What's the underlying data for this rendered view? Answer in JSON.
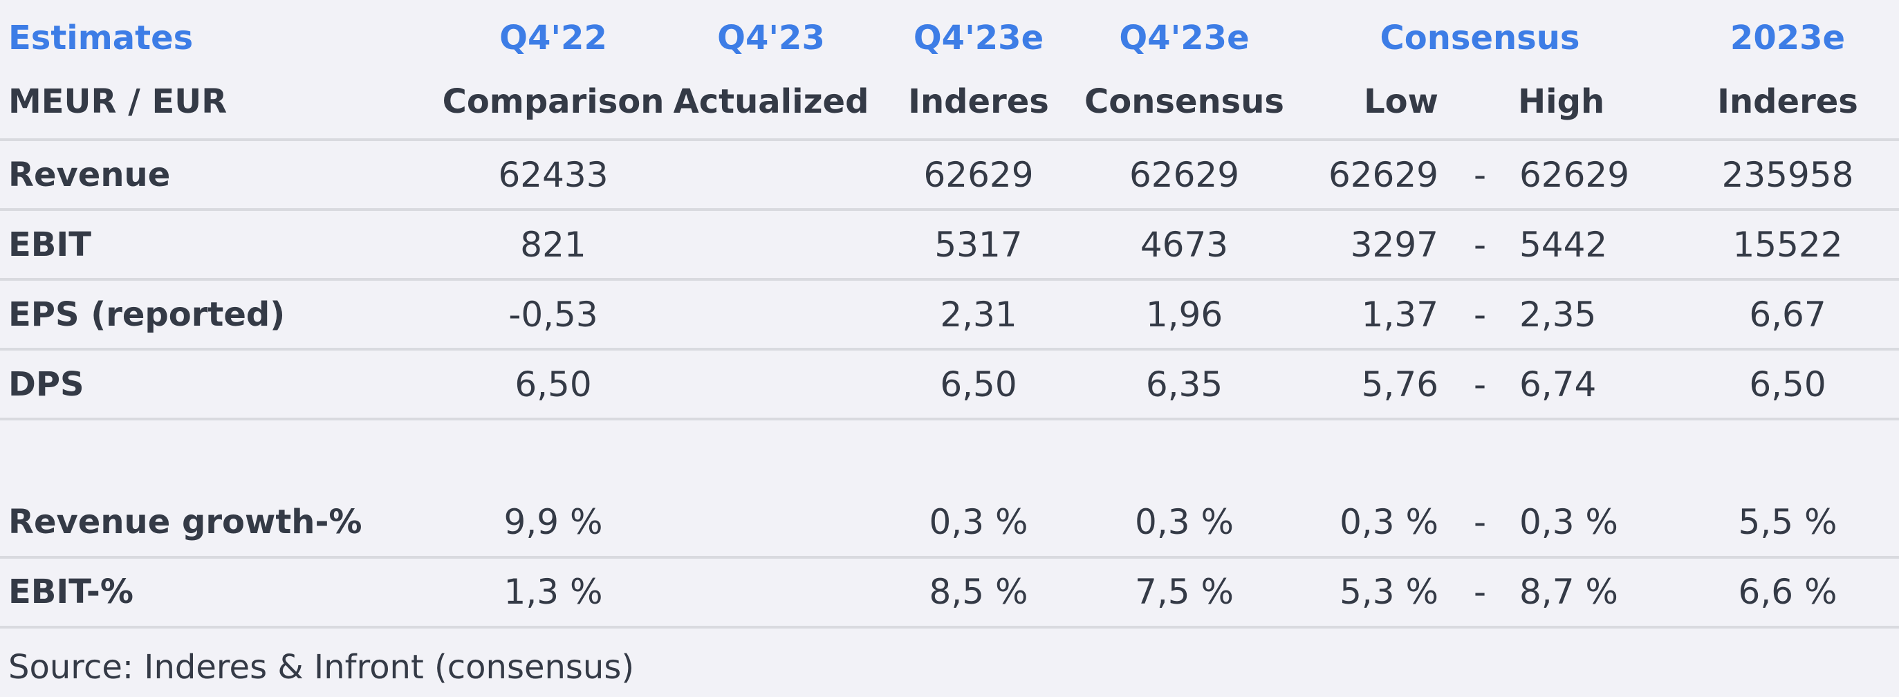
{
  "header": {
    "top": [
      "Estimates",
      "Q4'22",
      "Q4'23",
      "Q4'23e",
      "Q4'23e",
      "Consensus",
      "2023e"
    ],
    "bottom": [
      "MEUR / EUR",
      "Comparison",
      "Actualized",
      "Inderes",
      "Consensus",
      "Low",
      "High",
      "Inderes"
    ]
  },
  "rows": [
    {
      "label": "Revenue",
      "comparison": "62433",
      "actualized": "",
      "inderes": "62629",
      "consensus": "62629",
      "low": "62629",
      "dash": "-",
      "high": "62629",
      "year_inderes": "235958"
    },
    {
      "label": "EBIT",
      "comparison": "821",
      "actualized": "",
      "inderes": "5317",
      "consensus": "4673",
      "low": "3297",
      "dash": "-",
      "high": "5442",
      "year_inderes": "15522"
    },
    {
      "label": "EPS (reported)",
      "comparison": "-0,53",
      "actualized": "",
      "inderes": "2,31",
      "consensus": "1,96",
      "low": "1,37",
      "dash": "-",
      "high": "2,35",
      "year_inderes": "6,67"
    },
    {
      "label": "DPS",
      "comparison": "6,50",
      "actualized": "",
      "inderes": "6,50",
      "consensus": "6,35",
      "low": "5,76",
      "dash": "-",
      "high": "6,74",
      "year_inderes": "6,50"
    }
  ],
  "growth_rows": [
    {
      "label": "Revenue growth-%",
      "comparison": "9,9 %",
      "actualized": "",
      "inderes": "0,3 %",
      "consensus": "0,3 %",
      "low": "0,3 %",
      "dash": "-",
      "high": "0,3 %",
      "year_inderes": "5,5 %"
    },
    {
      "label": "EBIT-%",
      "comparison": "1,3 %",
      "actualized": "",
      "inderes": "8,5 %",
      "consensus": "7,5 %",
      "low": "5,3 %",
      "dash": "-",
      "high": "8,7 %",
      "year_inderes": "6,6 %"
    }
  ],
  "source": "Source: Inderes & Infront  (consensus)",
  "colors": {
    "header_blue": "#3d7de6",
    "text": "#343a46",
    "background": "#f2f2f7",
    "separator": "#d9dadf"
  }
}
